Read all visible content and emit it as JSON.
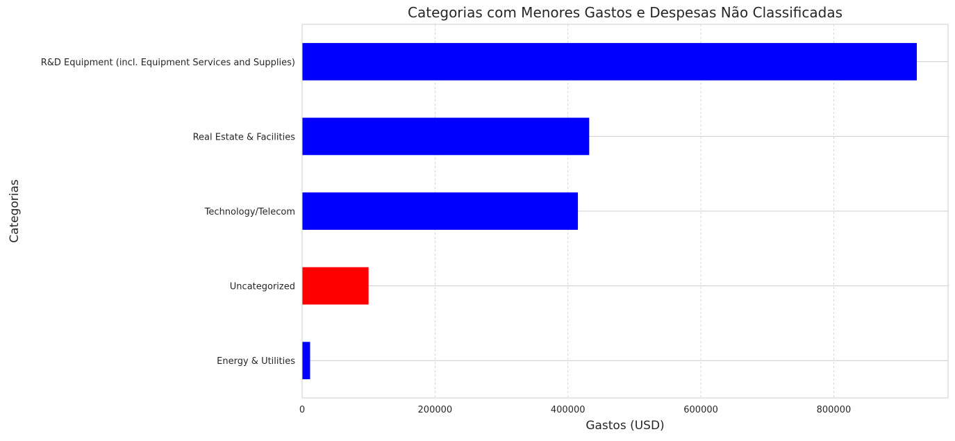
{
  "chart_data": {
    "type": "bar",
    "orientation": "horizontal",
    "title": "Categorias com Menores Gastos e Despesas Não Classificadas",
    "xlabel": "Gastos (USD)",
    "ylabel": "Categorias",
    "categories": [
      "R&D Equipment (incl. Equipment Services and Supplies)",
      "Real Estate & Facilities",
      "Technology/Telecom",
      "Uncategorized",
      "Energy & Utilities"
    ],
    "values": [
      925000,
      432000,
      415000,
      100000,
      12000
    ],
    "bar_colors": [
      "#0000ff",
      "#0000ff",
      "#0000ff",
      "#ff0000",
      "#0000ff"
    ],
    "xlim": [
      0,
      972000
    ],
    "xticks": [
      0,
      200000,
      400000,
      600000,
      800000
    ],
    "xtick_labels": [
      "0",
      "200000",
      "400000",
      "600000",
      "800000"
    ],
    "grid": true,
    "legend": "none"
  }
}
